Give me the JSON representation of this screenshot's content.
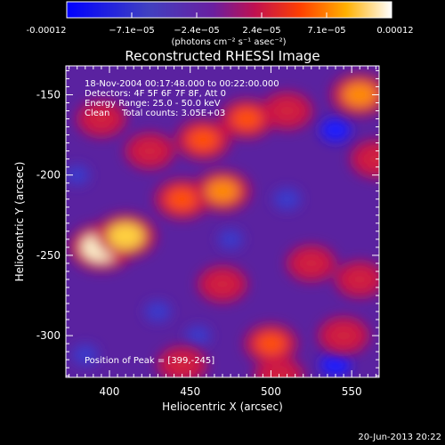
{
  "chart_data": {
    "type": "heatmap",
    "title": "Reconstructed RHESSI Image",
    "xlabel": "Heliocentric X (arcsec)",
    "ylabel": "Heliocentric Y (arcsec)",
    "xlim": [
      373,
      567
    ],
    "ylim": [
      -326,
      -132
    ],
    "xticks": [
      "400",
      "450",
      "500",
      "550"
    ],
    "yticks": [
      "-150",
      "-200",
      "-250",
      "-300"
    ],
    "colorbar": {
      "range": [
        -0.00012,
        0.00012
      ],
      "ticks": [
        "-0.00012",
        "−7.1e−05",
        "−2.4e−05",
        "2.4e−05",
        "7.1e−05",
        "0.00012"
      ],
      "unit_label": "(photons cm⁻² s⁻¹ asec⁻²)"
    },
    "annotations": {
      "time": "18-Nov-2004 00:17:48.000 to 00:22:00.000",
      "detectors": "Detectors: 4F 5F 6F 7F 8F, Att 0",
      "energy": "Energy Range: 25.0 - 50.0 keV",
      "clean_label": "Clean",
      "total_counts": "Total counts: 3.05E+03",
      "peak": "Position of Peak = [399,-245]"
    },
    "image_blobs": [
      {
        "x": 395,
        "y": -245,
        "intensity": 1.0
      },
      {
        "x": 410,
        "y": -238,
        "intensity": 0.9
      },
      {
        "x": 445,
        "y": -215,
        "intensity": 0.7
      },
      {
        "x": 470,
        "y": -210,
        "intensity": 0.75
      },
      {
        "x": 458,
        "y": -178,
        "intensity": 0.7
      },
      {
        "x": 485,
        "y": -165,
        "intensity": 0.65
      },
      {
        "x": 510,
        "y": -160,
        "intensity": 0.6
      },
      {
        "x": 555,
        "y": -150,
        "intensity": 0.8
      },
      {
        "x": 565,
        "y": -190,
        "intensity": 0.6
      },
      {
        "x": 395,
        "y": -165,
        "intensity": 0.55
      },
      {
        "x": 425,
        "y": -185,
        "intensity": 0.55
      },
      {
        "x": 470,
        "y": -268,
        "intensity": 0.55
      },
      {
        "x": 525,
        "y": -255,
        "intensity": 0.55
      },
      {
        "x": 555,
        "y": -265,
        "intensity": 0.55
      },
      {
        "x": 500,
        "y": -305,
        "intensity": 0.65
      },
      {
        "x": 545,
        "y": -300,
        "intensity": 0.6
      },
      {
        "x": 445,
        "y": -318,
        "intensity": 0.55
      },
      {
        "x": 505,
        "y": -325,
        "intensity": 0.55
      }
    ],
    "image_holes": [
      {
        "x": 540,
        "y": -172,
        "depth": 0.9
      },
      {
        "x": 510,
        "y": -215,
        "depth": 0.7
      },
      {
        "x": 475,
        "y": -240,
        "depth": 0.5
      },
      {
        "x": 430,
        "y": -285,
        "depth": 0.6
      },
      {
        "x": 385,
        "y": -312,
        "depth": 0.6
      },
      {
        "x": 540,
        "y": -318,
        "depth": 0.9
      },
      {
        "x": 455,
        "y": -300,
        "depth": 0.5
      },
      {
        "x": 380,
        "y": -200,
        "depth": 0.5
      }
    ]
  },
  "footer": {
    "timestamp": "20-Jun-2013 20:22"
  }
}
